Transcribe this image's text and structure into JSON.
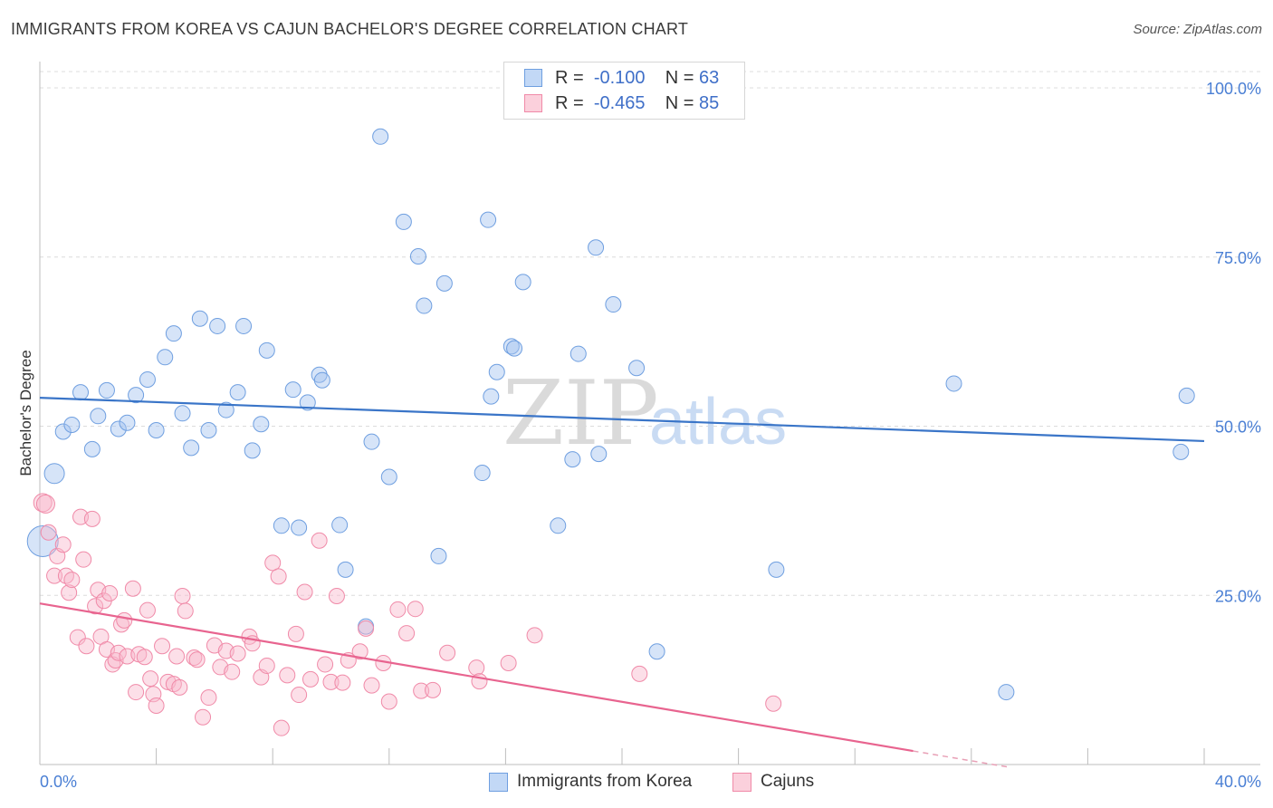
{
  "title": "IMMIGRANTS FROM KOREA VS CAJUN BACHELOR'S DEGREE CORRELATION CHART",
  "source": "Source: ZipAtlas.com",
  "watermark": {
    "zip": "ZIP",
    "atlas": "atlas"
  },
  "legend": {
    "rows": [
      {
        "r_label": "R =",
        "r_value": "-0.100",
        "n_label": "N =",
        "n_value": "63",
        "color": "#6f9fe0"
      },
      {
        "r_label": "R =",
        "r_value": "-0.465",
        "n_label": "N =",
        "n_value": "85",
        "color": "#f08aa8"
      }
    ]
  },
  "bottom_legend": {
    "korea": "Immigrants from Korea",
    "cajuns": "Cajuns"
  },
  "chart_data": {
    "type": "scatter",
    "title": "IMMIGRANTS FROM KOREA VS CAJUN BACHELOR'S DEGREE CORRELATION CHART",
    "xlabel": "",
    "ylabel": "Bachelor's Degree",
    "xlim": [
      0,
      40
    ],
    "ylim": [
      0,
      100
    ],
    "x_tick_labels": [
      "0.0%",
      "40.0%"
    ],
    "y_tick_labels": [
      "100.0%",
      "75.0%",
      "50.0%",
      "25.0%"
    ],
    "y_ticks": [
      100,
      75,
      50,
      25
    ],
    "grid": true,
    "colors": {
      "korea": "#6f9fe0",
      "cajuns": "#f08aa8",
      "korea_line": "#3a75c8",
      "cajuns_line": "#e8648f"
    },
    "series": [
      {
        "name": "Immigrants from Korea",
        "trend": {
          "x": [
            0,
            40
          ],
          "y": [
            54.2,
            47.8
          ]
        },
        "points": [
          [
            0.1,
            33.0
          ],
          [
            0.5,
            43.0
          ],
          [
            0.8,
            49.2
          ],
          [
            1.1,
            50.2
          ],
          [
            1.4,
            55.0
          ],
          [
            1.8,
            46.6
          ],
          [
            2.0,
            51.5
          ],
          [
            2.3,
            55.3
          ],
          [
            2.7,
            49.6
          ],
          [
            3.0,
            50.5
          ],
          [
            3.3,
            54.6
          ],
          [
            3.7,
            56.9
          ],
          [
            4.0,
            49.4
          ],
          [
            4.3,
            60.2
          ],
          [
            4.6,
            63.7
          ],
          [
            4.9,
            51.9
          ],
          [
            5.2,
            46.8
          ],
          [
            5.5,
            65.9
          ],
          [
            5.8,
            49.4
          ],
          [
            6.1,
            64.8
          ],
          [
            6.4,
            52.4
          ],
          [
            6.8,
            55.0
          ],
          [
            7.0,
            64.8
          ],
          [
            7.3,
            46.4
          ],
          [
            7.6,
            50.3
          ],
          [
            7.8,
            61.2
          ],
          [
            8.3,
            35.3
          ],
          [
            8.7,
            55.4
          ],
          [
            8.9,
            35.0
          ],
          [
            9.2,
            53.5
          ],
          [
            9.6,
            57.6
          ],
          [
            9.7,
            56.8
          ],
          [
            10.3,
            35.4
          ],
          [
            10.5,
            28.8
          ],
          [
            11.2,
            20.4
          ],
          [
            11.4,
            47.7
          ],
          [
            11.7,
            92.8
          ],
          [
            12.0,
            42.5
          ],
          [
            12.5,
            80.2
          ],
          [
            13.0,
            75.1
          ],
          [
            13.2,
            67.8
          ],
          [
            13.7,
            30.8
          ],
          [
            13.9,
            71.1
          ],
          [
            15.2,
            43.1
          ],
          [
            15.4,
            80.5
          ],
          [
            15.5,
            54.4
          ],
          [
            15.7,
            58.0
          ],
          [
            16.2,
            61.8
          ],
          [
            16.3,
            61.5
          ],
          [
            16.6,
            71.3
          ],
          [
            17.8,
            35.3
          ],
          [
            18.3,
            45.1
          ],
          [
            18.5,
            60.7
          ],
          [
            19.1,
            76.4
          ],
          [
            19.2,
            45.9
          ],
          [
            19.7,
            68.0
          ],
          [
            20.5,
            58.6
          ],
          [
            21.2,
            16.7
          ],
          [
            25.3,
            28.8
          ],
          [
            31.4,
            56.3
          ],
          [
            33.2,
            10.7
          ],
          [
            39.2,
            46.2
          ],
          [
            39.4,
            54.5
          ]
        ]
      },
      {
        "name": "Cajuns",
        "trend": {
          "x": [
            0,
            30
          ],
          "y": [
            23.8,
            2.0
          ]
        },
        "points": [
          [
            0.1,
            38.7
          ],
          [
            0.2,
            38.5
          ],
          [
            0.3,
            34.3
          ],
          [
            0.5,
            27.9
          ],
          [
            0.6,
            30.8
          ],
          [
            0.8,
            32.5
          ],
          [
            0.9,
            27.9
          ],
          [
            1.0,
            25.4
          ],
          [
            1.1,
            27.3
          ],
          [
            1.3,
            18.8
          ],
          [
            1.4,
            36.6
          ],
          [
            1.5,
            30.3
          ],
          [
            1.6,
            17.5
          ],
          [
            1.8,
            36.3
          ],
          [
            1.9,
            23.4
          ],
          [
            2.0,
            25.8
          ],
          [
            2.1,
            18.9
          ],
          [
            2.2,
            24.2
          ],
          [
            2.3,
            17.0
          ],
          [
            2.4,
            25.3
          ],
          [
            2.5,
            14.8
          ],
          [
            2.6,
            15.4
          ],
          [
            2.7,
            16.5
          ],
          [
            2.8,
            20.7
          ],
          [
            2.9,
            21.3
          ],
          [
            3.0,
            16.0
          ],
          [
            3.2,
            26.0
          ],
          [
            3.3,
            10.7
          ],
          [
            3.4,
            16.3
          ],
          [
            3.6,
            15.9
          ],
          [
            3.7,
            22.8
          ],
          [
            3.8,
            12.7
          ],
          [
            3.9,
            10.4
          ],
          [
            4.0,
            8.7
          ],
          [
            4.2,
            17.5
          ],
          [
            4.4,
            12.2
          ],
          [
            4.6,
            11.9
          ],
          [
            4.7,
            16.0
          ],
          [
            4.8,
            11.4
          ],
          [
            4.9,
            24.9
          ],
          [
            5.0,
            22.7
          ],
          [
            5.3,
            15.8
          ],
          [
            5.4,
            15.5
          ],
          [
            5.6,
            7.0
          ],
          [
            5.8,
            9.9
          ],
          [
            6.0,
            17.6
          ],
          [
            6.2,
            14.4
          ],
          [
            6.4,
            16.8
          ],
          [
            6.6,
            13.7
          ],
          [
            6.8,
            16.4
          ],
          [
            7.2,
            18.9
          ],
          [
            7.3,
            17.9
          ],
          [
            7.6,
            12.9
          ],
          [
            7.8,
            14.6
          ],
          [
            8.0,
            29.8
          ],
          [
            8.2,
            27.8
          ],
          [
            8.3,
            5.4
          ],
          [
            8.5,
            13.2
          ],
          [
            8.8,
            19.3
          ],
          [
            8.9,
            10.3
          ],
          [
            9.1,
            25.5
          ],
          [
            9.3,
            12.6
          ],
          [
            9.6,
            33.1
          ],
          [
            9.8,
            14.8
          ],
          [
            10.0,
            12.2
          ],
          [
            10.2,
            24.9
          ],
          [
            10.4,
            12.1
          ],
          [
            10.6,
            15.4
          ],
          [
            11.0,
            16.7
          ],
          [
            11.2,
            20.1
          ],
          [
            11.4,
            11.7
          ],
          [
            11.8,
            15.0
          ],
          [
            12.0,
            9.3
          ],
          [
            12.3,
            22.9
          ],
          [
            12.6,
            19.4
          ],
          [
            12.9,
            23.0
          ],
          [
            13.1,
            10.9
          ],
          [
            13.5,
            11.0
          ],
          [
            14.0,
            16.5
          ],
          [
            15.0,
            14.3
          ],
          [
            15.1,
            12.3
          ],
          [
            16.1,
            15.0
          ],
          [
            17.0,
            19.1
          ],
          [
            20.6,
            13.4
          ],
          [
            25.2,
            9.0
          ]
        ]
      }
    ]
  }
}
